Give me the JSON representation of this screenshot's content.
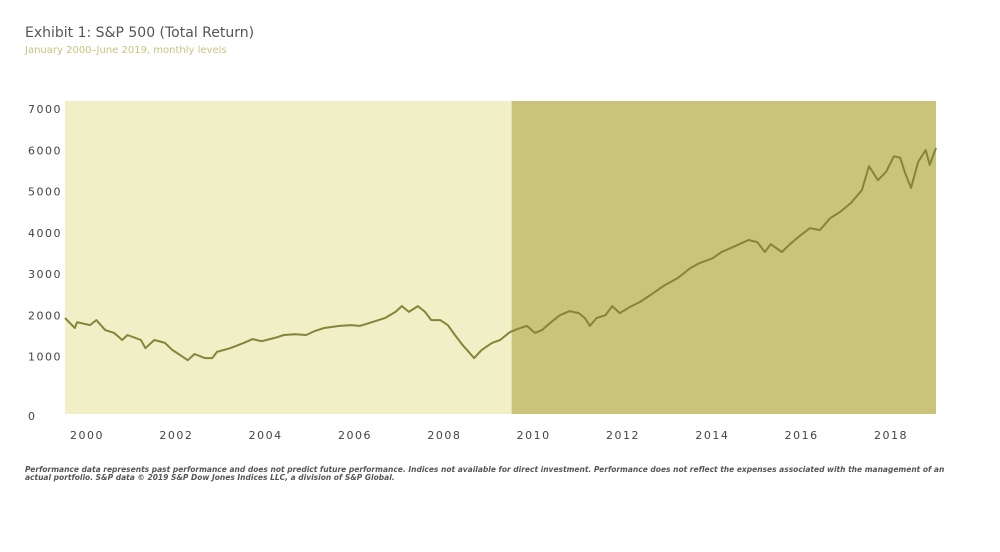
{
  "chart_data": {
    "type": "line",
    "title": "Exhibit 1: S&P 500 (Total Return)",
    "subtitle": "January 2000–June 2019, monthly levels",
    "footnote": "Performance data represents past performance and does not predict future performance. Indices not available for direct investment. Performance does  not reflect the expenses associated with the management of an actual portfolio. S&P data © 2019 S&P Dow Jones Indices LLC, a division of S&P Global.",
    "x": [
      2000.0,
      2000.22,
      2000.27,
      2000.56,
      2000.7,
      2000.9,
      2001.1,
      2001.28,
      2001.4,
      2001.7,
      2001.8,
      2002.0,
      2002.24,
      2002.4,
      2002.57,
      2002.75,
      2002.9,
      2003.13,
      2003.3,
      2003.4,
      2003.7,
      2004.0,
      2004.2,
      2004.4,
      2004.7,
      2004.9,
      2005.15,
      2005.4,
      2005.6,
      2005.8,
      2006.15,
      2006.4,
      2006.6,
      2006.87,
      2007.16,
      2007.4,
      2007.54,
      2007.7,
      2007.9,
      2008.06,
      2008.2,
      2008.4,
      2008.57,
      2008.73,
      2008.9,
      2009.0,
      2009.16,
      2009.33,
      2009.56,
      2009.74,
      2009.96,
      2010.19,
      2010.34,
      2010.52,
      2010.68,
      2010.86,
      2011.08,
      2011.3,
      2011.5,
      2011.64,
      2011.75,
      2011.9,
      2012.1,
      2012.25,
      2012.42,
      2012.65,
      2012.87,
      2013.14,
      2013.43,
      2013.72,
      2014.0,
      2014.2,
      2014.5,
      2014.7,
      2015.0,
      2015.3,
      2015.5,
      2015.67,
      2015.8,
      2016.05,
      2016.23,
      2016.45,
      2016.68,
      2016.9,
      2017.13,
      2017.35,
      2017.6,
      2017.84,
      2018.0,
      2018.2,
      2018.38,
      2018.56,
      2018.7,
      2018.8,
      2018.94,
      2019.1,
      2019.27,
      2019.36,
      2019.5
    ],
    "series": [
      {
        "name": "S&P 500 (Total Return)",
        "color": "#84843a",
        "values": [
          1960,
          1720,
          1860,
          1790,
          1910,
          1670,
          1600,
          1430,
          1550,
          1430,
          1230,
          1430,
          1360,
          1190,
          1070,
          940,
          1090,
          990,
          990,
          1140,
          1230,
          1360,
          1450,
          1400,
          1480,
          1550,
          1570,
          1550,
          1650,
          1720,
          1770,
          1790,
          1770,
          1860,
          1960,
          2110,
          2250,
          2110,
          2250,
          2110,
          1910,
          1910,
          1790,
          1550,
          1310,
          1190,
          990,
          1190,
          1360,
          1430,
          1620,
          1720,
          1770,
          1600,
          1670,
          1840,
          2030,
          2130,
          2080,
          1960,
          1770,
          1960,
          2030,
          2250,
          2080,
          2230,
          2350,
          2540,
          2760,
          2930,
          3170,
          3290,
          3410,
          3560,
          3700,
          3850,
          3800,
          3560,
          3750,
          3560,
          3750,
          3950,
          4140,
          4090,
          4380,
          4530,
          4750,
          5060,
          5640,
          5300,
          5500,
          5880,
          5840,
          5500,
          5110,
          5740,
          6030,
          5670,
          6080
        ]
      }
    ],
    "xlim": [
      2000,
      2019.5
    ],
    "xticks": [
      2000,
      2002,
      2004,
      2006,
      2008,
      2010,
      2012,
      2014,
      2016,
      2018
    ],
    "ylim": [
      0,
      7000
    ],
    "yticks": [
      0,
      1000,
      2000,
      3000,
      4000,
      5000,
      6000,
      7000
    ],
    "background": "#f1efc5",
    "highlight": {
      "from": 2010,
      "to": 2019.5,
      "color": "#c9c47a"
    },
    "grid": false
  }
}
